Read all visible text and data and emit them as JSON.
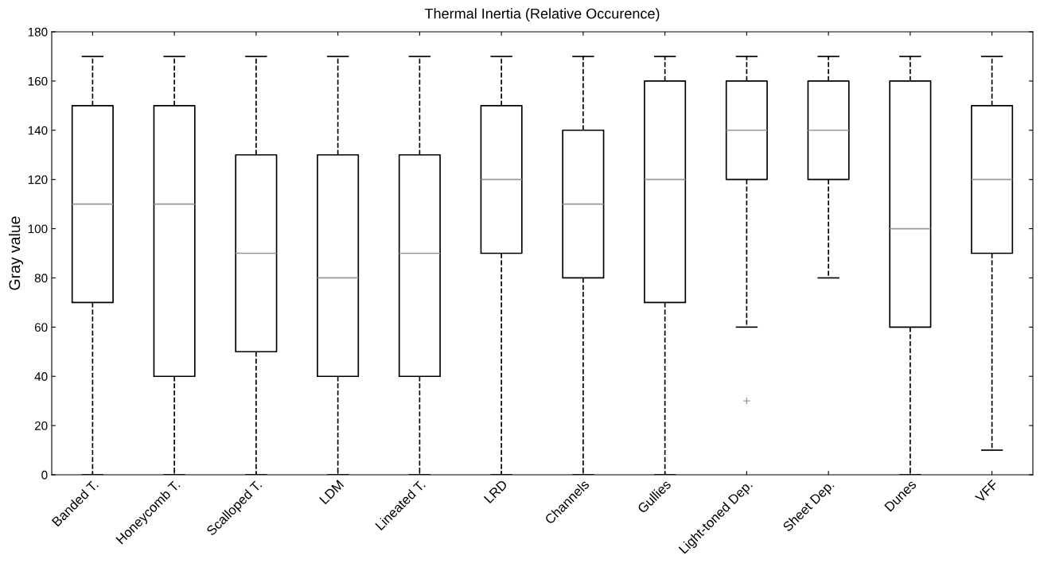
{
  "chart_data": {
    "type": "box",
    "title": "Thermal Inertia (Relative Occurence)",
    "ylabel": "Gray value",
    "categories": [
      "Banded T.",
      "Honeycomb T.",
      "Scalloped T.",
      "LDM",
      "Lineated T.",
      "LRD",
      "Channels",
      "Gullies",
      "Light-toned Dep.",
      "Sheet Dep.",
      "Dunes",
      "VFF"
    ],
    "boxes": [
      {
        "low": 0,
        "q1": 70,
        "median": 110,
        "q3": 150,
        "high": 170
      },
      {
        "low": 0,
        "q1": 40,
        "median": 110,
        "q3": 150,
        "high": 170
      },
      {
        "low": 0,
        "q1": 50,
        "median": 90,
        "q3": 130,
        "high": 170
      },
      {
        "low": 0,
        "q1": 40,
        "median": 80,
        "q3": 130,
        "high": 170
      },
      {
        "low": 0,
        "q1": 40,
        "median": 90,
        "q3": 130,
        "high": 170
      },
      {
        "low": 0,
        "q1": 90,
        "median": 120,
        "q3": 150,
        "high": 170
      },
      {
        "low": 0,
        "q1": 80,
        "median": 110,
        "q3": 140,
        "high": 170
      },
      {
        "low": 0,
        "q1": 70,
        "median": 120,
        "q3": 160,
        "high": 170
      },
      {
        "low": 60,
        "q1": 120,
        "median": 140,
        "q3": 160,
        "high": 170,
        "outliers": [
          30
        ]
      },
      {
        "low": 80,
        "q1": 120,
        "median": 140,
        "q3": 160,
        "high": 170
      },
      {
        "low": 0,
        "q1": 60,
        "median": 100,
        "q3": 160,
        "high": 170
      },
      {
        "low": 10,
        "q1": 90,
        "median": 120,
        "q3": 150,
        "high": 170
      }
    ],
    "ylim": [
      0,
      180
    ],
    "yticks": [
      0,
      20,
      40,
      60,
      80,
      100,
      120,
      140,
      160,
      180
    ],
    "grid": false,
    "marker": "cross",
    "line_style": "dashed"
  }
}
